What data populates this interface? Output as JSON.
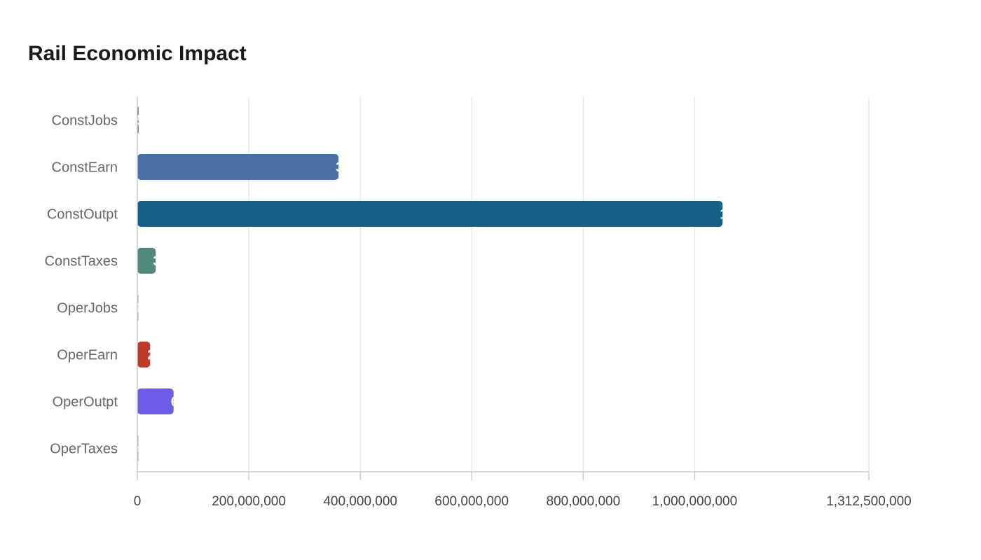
{
  "chart_data": {
    "type": "bar",
    "orientation": "horizontal",
    "title": "Rail Economic Impact",
    "xlabel": "",
    "ylabel": "",
    "categories": [
      "ConstJobs",
      "ConstEarn",
      "ConstOutpt",
      "ConstTaxes",
      "OperJobs",
      "OperEarn",
      "OperOutpt",
      "OperTaxes"
    ],
    "values": [
      5000,
      361000000,
      1050000000,
      33000000,
      600,
      23000000,
      65000000,
      400000
    ],
    "colors": [
      "#1f2233",
      "#4a6fa5",
      "#166088",
      "#4f8a7b",
      "#9a9a9a",
      "#c0392b",
      "#6c5ce7",
      "#8aa8a8"
    ],
    "xlim": [
      0,
      1312500000
    ],
    "xticks": [
      0,
      200000000,
      400000000,
      600000000,
      800000000,
      1000000000,
      1312500000
    ],
    "xtick_labels": [
      "0",
      "200,000,000",
      "400,000,000",
      "600,000,000",
      "800,000,000",
      "1,000,000,000",
      "1,312,500,000"
    ],
    "grid": true,
    "legend": "none"
  }
}
